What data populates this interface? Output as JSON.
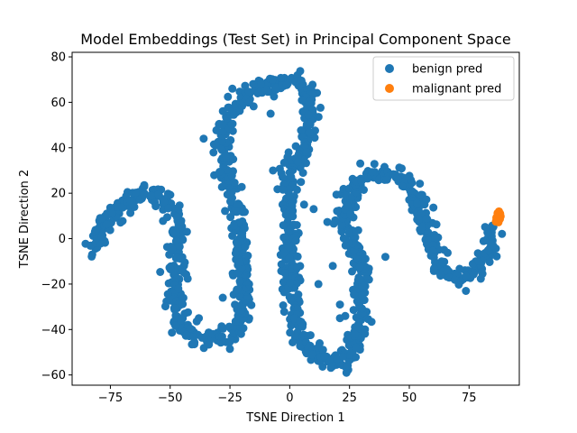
{
  "chart_data": {
    "type": "scatter",
    "title": "Model Embeddings (Test Set) in Principal Component Space",
    "xlabel": "TSNE Direction 1",
    "ylabel": "TSNE Direction 2",
    "xlim": [
      -91,
      96
    ],
    "ylim": [
      -64.5,
      82
    ],
    "xticks": [
      -75,
      -50,
      -25,
      0,
      25,
      50,
      75
    ],
    "xtick_labels": [
      "−75",
      "−50",
      "−25",
      "0",
      "25",
      "50",
      "75"
    ],
    "yticks": [
      -60,
      -40,
      -20,
      0,
      20,
      40,
      60,
      80
    ],
    "ytick_labels": [
      "−60",
      "−40",
      "−20",
      "0",
      "20",
      "40",
      "60",
      "80"
    ],
    "grid": false,
    "legend_position": "top-right",
    "series": [
      {
        "name": "benign pred",
        "color": "#1f77b4",
        "path": [
          [
            -82,
            -5
          ],
          [
            -78,
            5
          ],
          [
            -72,
            12
          ],
          [
            -66,
            18
          ],
          [
            -60,
            21
          ],
          [
            -55,
            20
          ],
          [
            -50,
            15
          ],
          [
            -47,
            5
          ],
          [
            -47,
            -8
          ],
          [
            -48,
            -20
          ],
          [
            -48,
            -33
          ],
          [
            -45,
            -40
          ],
          [
            -40,
            -43
          ],
          [
            -33,
            -44
          ],
          [
            -26,
            -44
          ],
          [
            -21,
            -38
          ],
          [
            -19,
            -25
          ],
          [
            -20,
            -12
          ],
          [
            -21,
            0
          ],
          [
            -22,
            12
          ],
          [
            -25,
            25
          ],
          [
            -28,
            40
          ],
          [
            -26,
            52
          ],
          [
            -20,
            62
          ],
          [
            -12,
            66
          ],
          [
            -4,
            70
          ],
          [
            3,
            70
          ],
          [
            8,
            65
          ],
          [
            9,
            52
          ],
          [
            6,
            40
          ],
          [
            1,
            30
          ],
          [
            -1,
            18
          ],
          [
            -1,
            5
          ],
          [
            0,
            -10
          ],
          [
            1,
            -25
          ],
          [
            3,
            -38
          ],
          [
            8,
            -48
          ],
          [
            15,
            -54
          ],
          [
            22,
            -55
          ],
          [
            27,
            -48
          ],
          [
            29,
            -35
          ],
          [
            30,
            -20
          ],
          [
            29,
            -5
          ],
          [
            22,
            10
          ],
          [
            25,
            20
          ],
          [
            32,
            27
          ],
          [
            40,
            29
          ],
          [
            47,
            26
          ],
          [
            53,
            18
          ],
          [
            56,
            8
          ],
          [
            60,
            -5
          ],
          [
            66,
            -15
          ],
          [
            72,
            -17
          ],
          [
            78,
            -13
          ],
          [
            83,
            -5
          ],
          [
            85,
            5
          ]
        ],
        "outliers": [
          [
            -28,
            -26
          ],
          [
            -7,
            30
          ],
          [
            -31,
            41
          ],
          [
            -17,
            60
          ],
          [
            -24,
            66
          ],
          [
            -43,
            3
          ],
          [
            -38,
            -35
          ],
          [
            12,
            -20
          ],
          [
            18,
            -12
          ],
          [
            21,
            -35
          ],
          [
            21,
            -29
          ],
          [
            -8,
            55
          ],
          [
            6,
            15
          ],
          [
            10,
            13
          ],
          [
            -12,
            68
          ],
          [
            40,
            -8
          ],
          [
            -36,
            44
          ]
        ]
      },
      {
        "name": "malignant pred",
        "color": "#ff7f0e",
        "points": [
          [
            87.5,
            12
          ],
          [
            88.0,
            11
          ],
          [
            87.2,
            10.5
          ],
          [
            87.7,
            10
          ],
          [
            86.8,
            9.5
          ],
          [
            87.5,
            9
          ],
          [
            86.5,
            8.5
          ],
          [
            87.0,
            8
          ],
          [
            86.2,
            7.5
          ],
          [
            87.3,
            7.2
          ],
          [
            88.2,
            9.8
          ],
          [
            86.9,
            11.2
          ],
          [
            87.9,
            8.6
          ],
          [
            86.4,
            9.2
          ]
        ]
      }
    ]
  }
}
